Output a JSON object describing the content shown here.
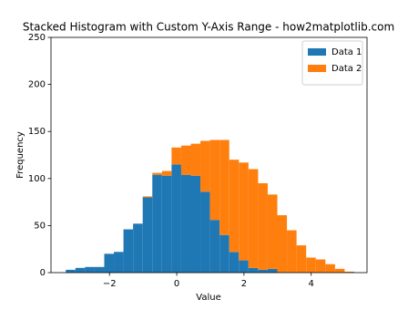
{
  "chart_data": {
    "type": "histogram",
    "title": "Stacked Histogram with Custom Y-Axis Range - how2matplotlib.com",
    "x_label": "Value",
    "y_label": "Frequency",
    "bins": [
      -3.3,
      -3.014,
      -2.728,
      -2.442,
      -2.156,
      -1.87,
      -1.584,
      -1.298,
      -1.012,
      -0.726,
      -0.44,
      -0.154,
      0.132,
      0.418,
      0.704,
      0.99,
      1.276,
      1.562,
      1.848,
      2.134,
      2.42,
      2.706,
      2.992,
      3.278,
      3.564,
      3.85,
      4.136,
      4.422,
      4.708,
      4.994,
      5.28
    ],
    "series": [
      {
        "name": "Data 1",
        "color": "#1f77b4",
        "values": [
          3,
          5,
          6,
          6,
          20,
          22,
          46,
          52,
          80,
          104,
          103,
          115,
          104,
          103,
          86,
          56,
          40,
          22,
          13,
          5,
          3,
          4,
          0,
          0,
          0,
          0,
          0,
          0,
          0,
          0
        ]
      },
      {
        "name": "Data 2",
        "color": "#ff7f0e",
        "values": [
          0,
          0,
          0,
          0,
          0,
          0,
          0,
          0,
          1,
          2,
          5,
          18,
          31,
          34,
          54,
          85,
          101,
          98,
          104,
          105,
          92,
          79,
          61,
          45,
          29,
          16,
          14,
          9,
          4,
          1
        ]
      }
    ],
    "stacked": true,
    "xlim": [
      -3.74,
      5.66
    ],
    "ylim": [
      0,
      250
    ],
    "xticks": [
      {
        "value": -2,
        "label": "−2"
      },
      0,
      2,
      4
    ],
    "yticks": [
      0,
      50,
      100,
      150,
      200,
      250
    ],
    "legend": "upper right"
  }
}
